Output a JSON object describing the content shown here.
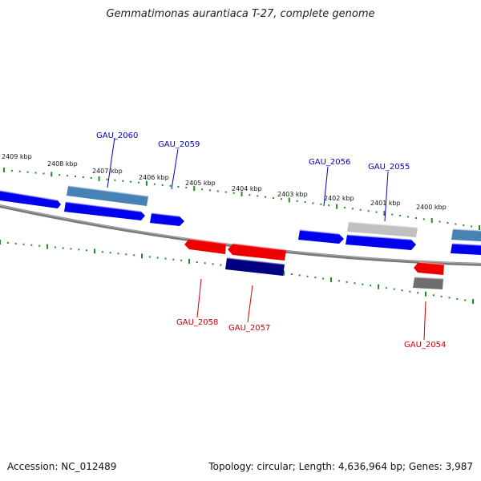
{
  "title": "Gemmatimonas aurantiaca T-27, complete genome",
  "footer": {
    "accession": "Accession: NC_012489",
    "summary": "Topology: circular; Length: 4,636,964 bp; Genes: 3,987"
  },
  "colors": {
    "forward_gene": "#0000ee",
    "reverse_gene": "#ee0000",
    "backbone": "#808080",
    "tick": "#228b22",
    "forward_label": "#0000cc",
    "reverse_label": "#cc0000",
    "steel": "#4682b4",
    "navy": "#000080",
    "silver": "#c0c0c0",
    "gray": "#6e6e6e"
  },
  "kbp_labels": [
    "2409 kbp",
    "2408 kbp",
    "2407 kbp",
    "2406 kbp",
    "2405 kbp",
    "2404 kbp",
    "2403 kbp",
    "2402 kbp",
    "2401 kbp",
    "2400 kbp"
  ],
  "gene_labels": {
    "GAU_2060": "GAU_2060",
    "GAU_2059": "GAU_2059",
    "GAU_2056": "GAU_2056",
    "GAU_2055": "GAU_2055",
    "GAU_2058": "GAU_2058",
    "GAU_2057": "GAU_2057",
    "GAU_2054": "GAU_2054"
  }
}
